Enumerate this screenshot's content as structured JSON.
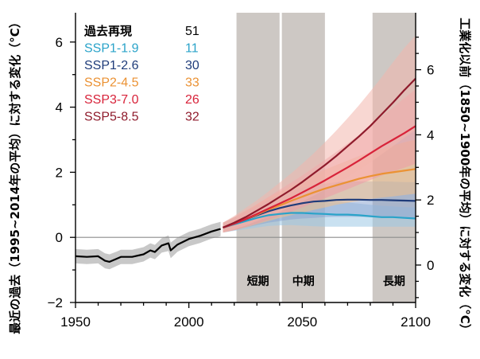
{
  "chart_data": {
    "type": "line",
    "left_axis": {
      "label": "最近の過去（1995~2014年の平均）に対する変化（°C）",
      "range": [
        -2,
        6.9
      ],
      "ticks": [
        -2,
        0,
        2,
        4,
        6
      ],
      "tick_labels": [
        "−2",
        "0",
        "2",
        "4",
        "6"
      ]
    },
    "right_axis": {
      "label": "工業化以前（1850~1900年の平均）に対する変化（°C）",
      "offset_from_left": 0.85,
      "ticks": [
        0,
        2,
        4,
        6
      ],
      "tick_labels": [
        "0",
        "2",
        "4",
        "6"
      ]
    },
    "x_axis": {
      "range": [
        1950,
        2100
      ],
      "ticks": [
        1950,
        2000,
        2050,
        2100
      ],
      "tick_labels": [
        "1950",
        "2000",
        "2050",
        "2100"
      ]
    },
    "periods": [
      {
        "label": "短期",
        "start": 2021,
        "end": 2040
      },
      {
        "label": "中期",
        "start": 2041,
        "end": 2060
      },
      {
        "label": "長期",
        "start": 2081,
        "end": 2100
      }
    ],
    "zero_line": 0,
    "legend": {
      "title": "過去再現",
      "title_count": "51",
      "entries": [
        {
          "name": "SSP1-1.9",
          "count": "11",
          "color": "#2aa3c9"
        },
        {
          "name": "SSP1-2.6",
          "count": "30",
          "color": "#1f3c7a"
        },
        {
          "name": "SSP2-4.5",
          "count": "33",
          "color": "#eb9234"
        },
        {
          "name": "SSP3-7.0",
          "count": "26",
          "color": "#d8233a"
        },
        {
          "name": "SSP5-8.5",
          "count": "32",
          "color": "#8f1b2c"
        }
      ]
    },
    "series": [
      {
        "name": "過去再現",
        "color": "#000000",
        "band_color": "#c8c8c8",
        "x": [
          1950,
          1955,
          1960,
          1963,
          1965,
          1968,
          1970,
          1975,
          1980,
          1983,
          1985,
          1988,
          1991,
          1992,
          1995,
          2000,
          2005,
          2010,
          2014
        ],
        "y": [
          -0.58,
          -0.6,
          -0.58,
          -0.72,
          -0.75,
          -0.66,
          -0.6,
          -0.6,
          -0.52,
          -0.4,
          -0.45,
          -0.25,
          -0.18,
          -0.4,
          -0.22,
          -0.05,
          0.05,
          0.18,
          0.26
        ],
        "band_half_width": [
          0.22,
          0.22,
          0.22,
          0.23,
          0.23,
          0.22,
          0.22,
          0.22,
          0.22,
          0.22,
          0.22,
          0.22,
          0.24,
          0.24,
          0.22,
          0.22,
          0.22,
          0.22,
          0.22
        ]
      },
      {
        "name": "SSP1-1.9",
        "color": "#2aa3c9",
        "band_color": "#9cc9e6",
        "x": [
          2015,
          2020,
          2025,
          2030,
          2035,
          2040,
          2045,
          2050,
          2055,
          2060,
          2065,
          2070,
          2075,
          2080,
          2085,
          2090,
          2095,
          2100
        ],
        "y": [
          0.3,
          0.4,
          0.5,
          0.6,
          0.68,
          0.72,
          0.75,
          0.75,
          0.73,
          0.72,
          0.7,
          0.7,
          0.68,
          0.65,
          0.62,
          0.62,
          0.6,
          0.58
        ],
        "band_lower": [
          0.15,
          0.2,
          0.25,
          0.3,
          0.35,
          0.37,
          0.38,
          0.36,
          0.34,
          0.33,
          0.33,
          0.33,
          0.33,
          0.33,
          0.33,
          0.33,
          0.33,
          0.33
        ],
        "band_upper": [
          0.45,
          0.6,
          0.75,
          0.9,
          1.02,
          1.08,
          1.12,
          1.13,
          1.11,
          1.1,
          1.08,
          1.07,
          1.04,
          1.0,
          0.97,
          0.95,
          0.93,
          0.92
        ]
      },
      {
        "name": "SSP1-2.6",
        "color": "#1f3c7a",
        "band_color": "#8da6d2",
        "x": [
          2015,
          2020,
          2025,
          2030,
          2035,
          2040,
          2045,
          2050,
          2055,
          2060,
          2065,
          2070,
          2075,
          2080,
          2085,
          2090,
          2095,
          2100
        ],
        "y": [
          0.3,
          0.42,
          0.55,
          0.68,
          0.8,
          0.9,
          0.98,
          1.05,
          1.1,
          1.12,
          1.15,
          1.16,
          1.16,
          1.15,
          1.15,
          1.14,
          1.13,
          1.12
        ],
        "band_lower": [
          0.15,
          0.22,
          0.3,
          0.38,
          0.45,
          0.5,
          0.55,
          0.58,
          0.6,
          0.62,
          0.63,
          0.63,
          0.63,
          0.62,
          0.62,
          0.61,
          0.6,
          0.6
        ],
        "band_upper": [
          0.45,
          0.62,
          0.8,
          0.98,
          1.15,
          1.3,
          1.42,
          1.52,
          1.6,
          1.65,
          1.7,
          1.72,
          1.72,
          1.72,
          1.72,
          1.71,
          1.7,
          1.7
        ]
      },
      {
        "name": "SSP2-4.5",
        "color": "#eb9234",
        "band_color": "#f2c08a",
        "x": [
          2015,
          2020,
          2025,
          2030,
          2035,
          2040,
          2045,
          2050,
          2055,
          2060,
          2065,
          2070,
          2075,
          2080,
          2085,
          2090,
          2095,
          2100
        ],
        "y": [
          0.3,
          0.42,
          0.56,
          0.7,
          0.85,
          0.98,
          1.12,
          1.25,
          1.38,
          1.5,
          1.6,
          1.7,
          1.8,
          1.88,
          1.95,
          2.0,
          2.05,
          2.1
        ],
        "band_lower": [
          0.15,
          0.22,
          0.3,
          0.4,
          0.5,
          0.6,
          0.68,
          0.76,
          0.84,
          0.92,
          1.0,
          1.06,
          1.12,
          1.18,
          1.22,
          1.26,
          1.3,
          1.34
        ],
        "band_upper": [
          0.45,
          0.62,
          0.82,
          1.02,
          1.22,
          1.4,
          1.58,
          1.75,
          1.92,
          2.08,
          2.22,
          2.36,
          2.5,
          2.62,
          2.72,
          2.82,
          2.92,
          3.0
        ]
      },
      {
        "name": "SSP3-7.0",
        "color": "#d8233a",
        "band_color": "#ee9aa6",
        "x": [
          2015,
          2020,
          2025,
          2030,
          2035,
          2040,
          2045,
          2050,
          2055,
          2060,
          2065,
          2070,
          2075,
          2080,
          2085,
          2090,
          2095,
          2100
        ],
        "y": [
          0.3,
          0.42,
          0.56,
          0.72,
          0.88,
          1.04,
          1.2,
          1.38,
          1.56,
          1.75,
          1.95,
          2.15,
          2.36,
          2.58,
          2.8,
          3.0,
          3.2,
          3.42
        ],
        "band_lower": [
          0.15,
          0.22,
          0.32,
          0.42,
          0.54,
          0.66,
          0.78,
          0.92,
          1.06,
          1.2,
          1.34,
          1.48,
          1.62,
          1.76,
          1.9,
          2.02,
          2.14,
          2.26
        ],
        "band_upper": [
          0.45,
          0.62,
          0.82,
          1.02,
          1.24,
          1.46,
          1.68,
          1.9,
          2.14,
          2.38,
          2.62,
          2.88,
          3.14,
          3.42,
          3.7,
          3.98,
          4.28,
          4.55
        ]
      },
      {
        "name": "SSP5-8.5",
        "color": "#8f1b2c",
        "band_color": "#f3b7ad",
        "x": [
          2015,
          2020,
          2025,
          2030,
          2035,
          2040,
          2045,
          2050,
          2055,
          2060,
          2065,
          2070,
          2075,
          2080,
          2085,
          2090,
          2095,
          2100
        ],
        "y": [
          0.3,
          0.45,
          0.62,
          0.82,
          1.02,
          1.24,
          1.46,
          1.7,
          1.96,
          2.22,
          2.5,
          2.8,
          3.1,
          3.42,
          3.78,
          4.14,
          4.52,
          4.88
        ],
        "band_lower": [
          0.15,
          0.25,
          0.36,
          0.5,
          0.64,
          0.78,
          0.94,
          1.1,
          1.28,
          1.46,
          1.66,
          1.86,
          2.08,
          2.3,
          2.55,
          2.8,
          3.06,
          3.3
        ],
        "band_upper": [
          0.45,
          0.66,
          0.9,
          1.14,
          1.4,
          1.68,
          1.96,
          2.26,
          2.58,
          2.92,
          3.28,
          3.66,
          4.06,
          4.48,
          4.92,
          5.38,
          5.82,
          6.2
        ]
      }
    ]
  }
}
